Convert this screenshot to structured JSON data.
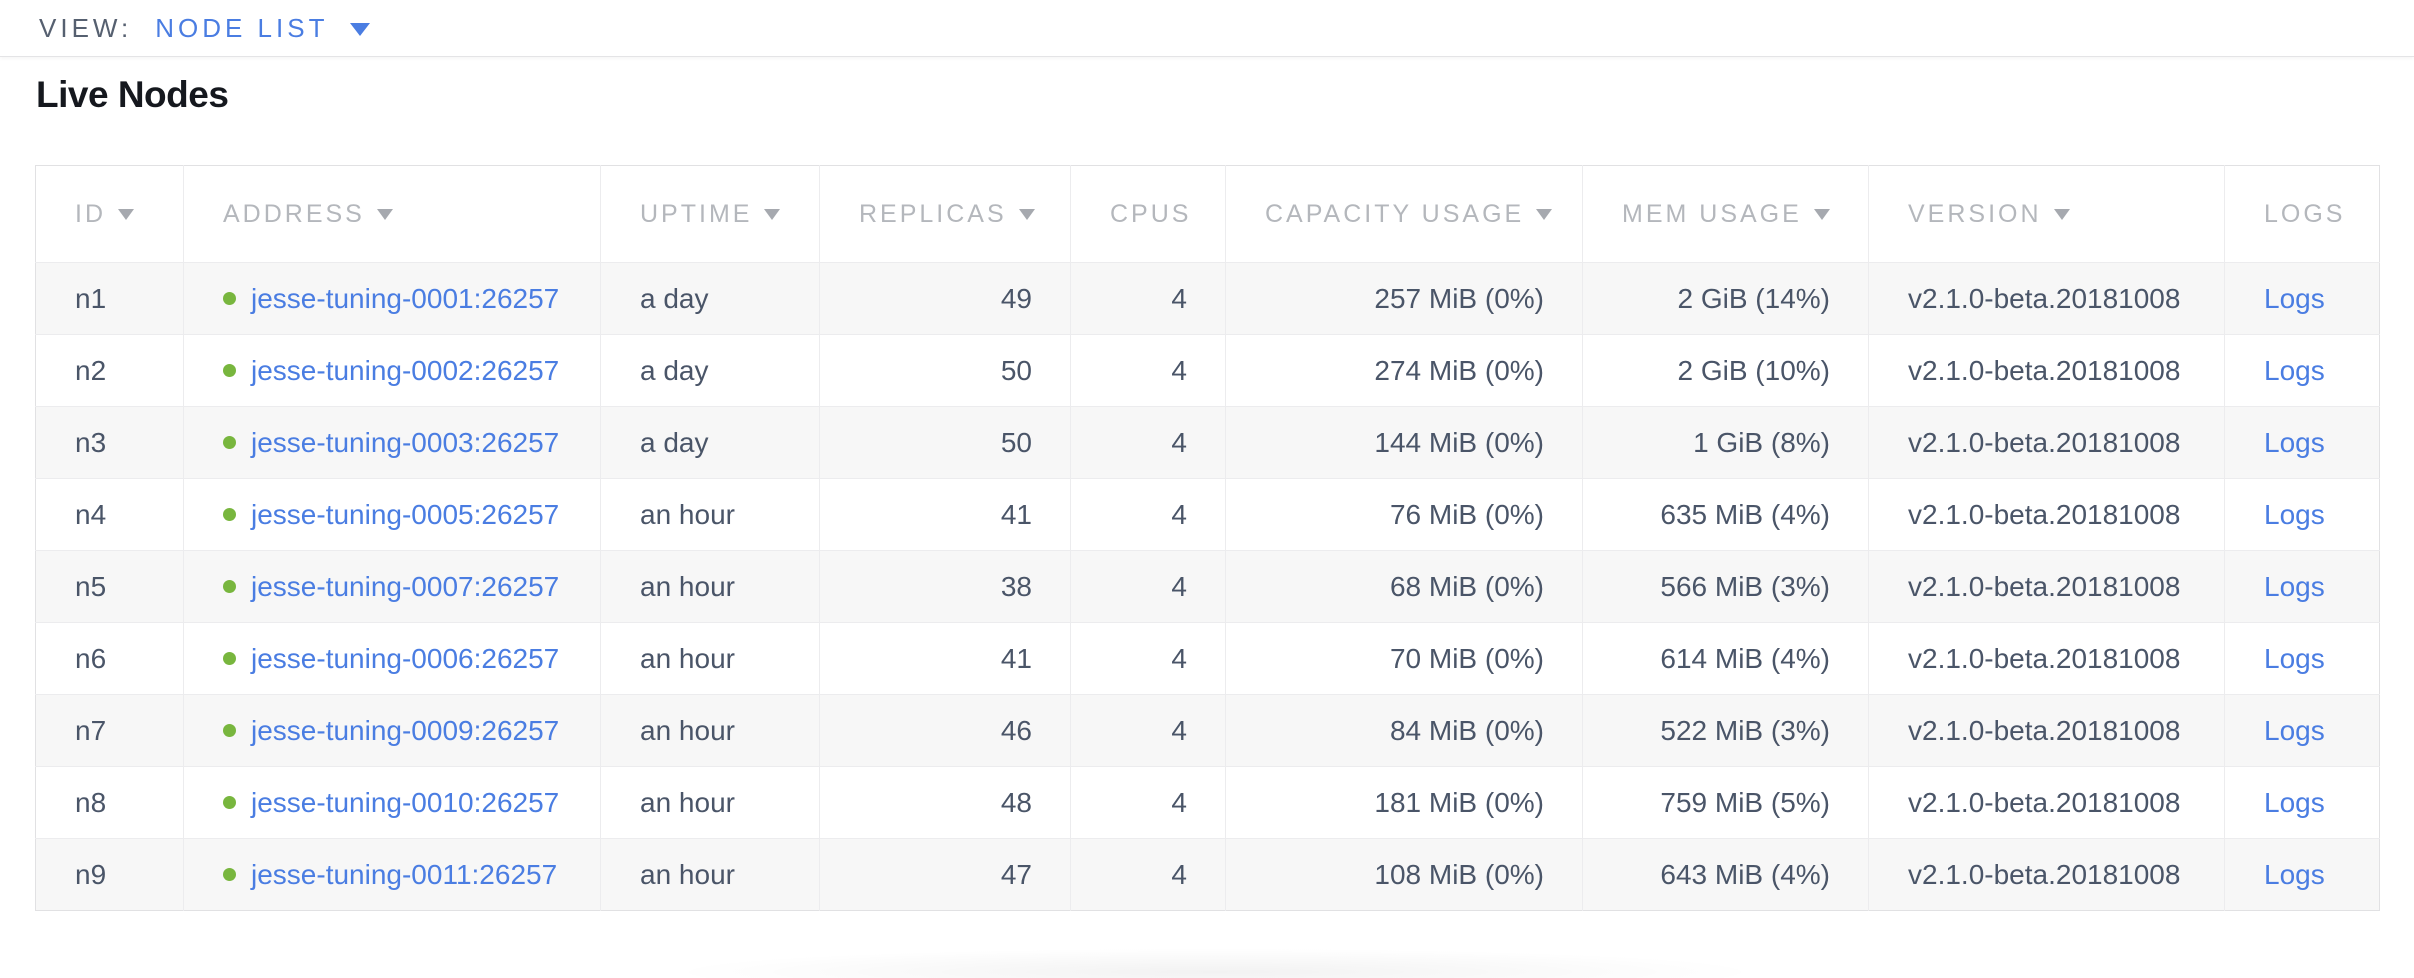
{
  "view_bar": {
    "label": "VIEW:",
    "selected_view": "NODE LIST"
  },
  "page": {
    "heading": "Live Nodes"
  },
  "nodes_table": {
    "columns": [
      {
        "key": "id",
        "label": "ID",
        "sortable": true,
        "numeric": false
      },
      {
        "key": "address",
        "label": "ADDRESS",
        "sortable": true,
        "numeric": false
      },
      {
        "key": "uptime",
        "label": "UPTIME",
        "sortable": true,
        "numeric": false
      },
      {
        "key": "replicas",
        "label": "REPLICAS",
        "sortable": true,
        "numeric": true
      },
      {
        "key": "cpus",
        "label": "CPUS",
        "sortable": false,
        "numeric": true
      },
      {
        "key": "capacity_usage",
        "label": "CAPACITY USAGE",
        "sortable": true,
        "numeric": true
      },
      {
        "key": "mem_usage",
        "label": "MEM USAGE",
        "sortable": true,
        "numeric": true
      },
      {
        "key": "version",
        "label": "VERSION",
        "sortable": true,
        "numeric": false
      },
      {
        "key": "logs",
        "label": "LOGS",
        "sortable": false,
        "numeric": false
      }
    ],
    "rows": [
      {
        "id": "n1",
        "address": "jesse-tuning-0001:26257",
        "status": "live",
        "uptime": "a day",
        "replicas": "49",
        "cpus": "4",
        "capacity_usage": "257 MiB (0%)",
        "mem_usage": "2 GiB (14%)",
        "version": "v2.1.0-beta.20181008",
        "logs": "Logs"
      },
      {
        "id": "n2",
        "address": "jesse-tuning-0002:26257",
        "status": "live",
        "uptime": "a day",
        "replicas": "50",
        "cpus": "4",
        "capacity_usage": "274 MiB (0%)",
        "mem_usage": "2 GiB (10%)",
        "version": "v2.1.0-beta.20181008",
        "logs": "Logs"
      },
      {
        "id": "n3",
        "address": "jesse-tuning-0003:26257",
        "status": "live",
        "uptime": "a day",
        "replicas": "50",
        "cpus": "4",
        "capacity_usage": "144 MiB (0%)",
        "mem_usage": "1 GiB (8%)",
        "version": "v2.1.0-beta.20181008",
        "logs": "Logs"
      },
      {
        "id": "n4",
        "address": "jesse-tuning-0005:26257",
        "status": "live",
        "uptime": "an hour",
        "replicas": "41",
        "cpus": "4",
        "capacity_usage": "76 MiB (0%)",
        "mem_usage": "635 MiB (4%)",
        "version": "v2.1.0-beta.20181008",
        "logs": "Logs"
      },
      {
        "id": "n5",
        "address": "jesse-tuning-0007:26257",
        "status": "live",
        "uptime": "an hour",
        "replicas": "38",
        "cpus": "4",
        "capacity_usage": "68 MiB (0%)",
        "mem_usage": "566 MiB (3%)",
        "version": "v2.1.0-beta.20181008",
        "logs": "Logs"
      },
      {
        "id": "n6",
        "address": "jesse-tuning-0006:26257",
        "status": "live",
        "uptime": "an hour",
        "replicas": "41",
        "cpus": "4",
        "capacity_usage": "70 MiB (0%)",
        "mem_usage": "614 MiB (4%)",
        "version": "v2.1.0-beta.20181008",
        "logs": "Logs"
      },
      {
        "id": "n7",
        "address": "jesse-tuning-0009:26257",
        "status": "live",
        "uptime": "an hour",
        "replicas": "46",
        "cpus": "4",
        "capacity_usage": "84 MiB (0%)",
        "mem_usage": "522 MiB (3%)",
        "version": "v2.1.0-beta.20181008",
        "logs": "Logs"
      },
      {
        "id": "n8",
        "address": "jesse-tuning-0010:26257",
        "status": "live",
        "uptime": "an hour",
        "replicas": "48",
        "cpus": "4",
        "capacity_usage": "181 MiB (0%)",
        "mem_usage": "759 MiB (5%)",
        "version": "v2.1.0-beta.20181008",
        "logs": "Logs"
      },
      {
        "id": "n9",
        "address": "jesse-tuning-0011:26257",
        "status": "live",
        "uptime": "an hour",
        "replicas": "47",
        "cpus": "4",
        "capacity_usage": "108 MiB (0%)",
        "mem_usage": "643 MiB (4%)",
        "version": "v2.1.0-beta.20181008",
        "logs": "Logs"
      }
    ]
  },
  "colors": {
    "accent_blue": "#4a7de2",
    "live_green": "#78b63e",
    "header_gray": "#b4b7bc",
    "body_slate": "#4a5568",
    "row_stripe": "#f7f7f7"
  }
}
